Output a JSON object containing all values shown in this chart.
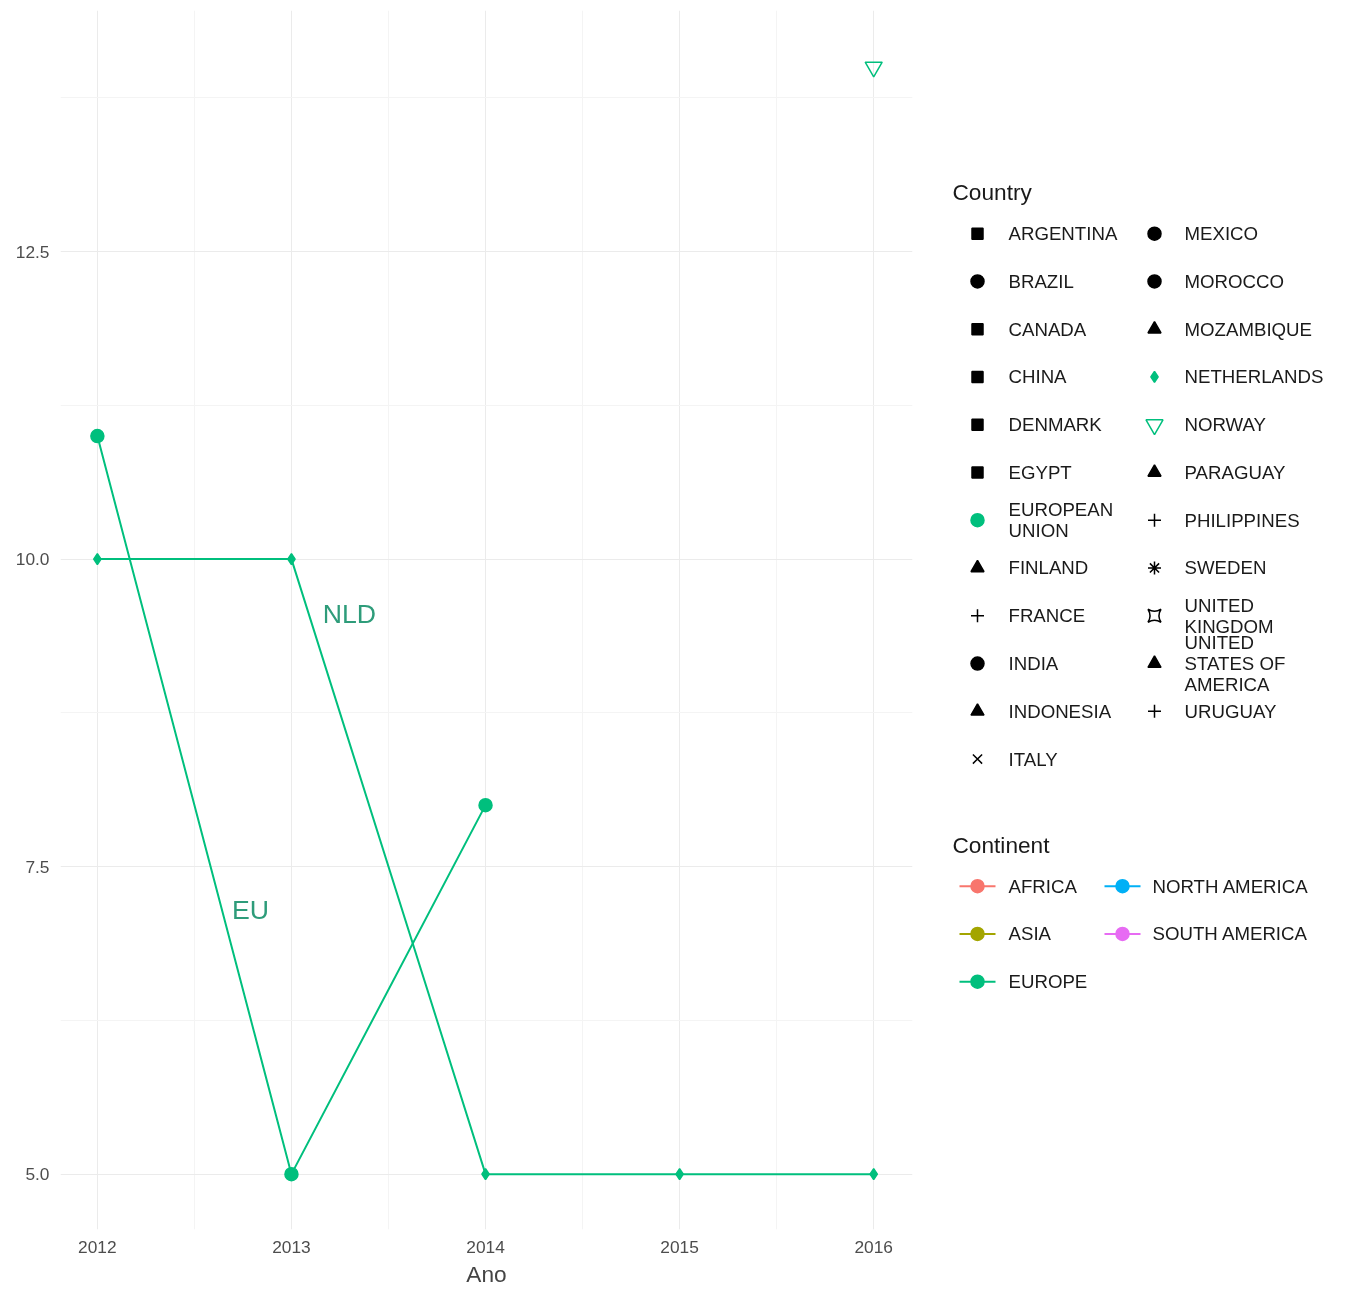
{
  "chart_data": {
    "type": "line",
    "xlabel": "Ano",
    "legend_title": [
      "Country",
      "Continent"
    ],
    "legend": "right",
    "grid": true,
    "marker": "circle",
    "x": [
      2012,
      2013,
      2014,
      2015,
      2016
    ],
    "xlim": [
      2011.81,
      2016.2
    ],
    "ylim": [
      4.55,
      14.46
    ],
    "xticks": [
      2012,
      2013,
      2014,
      2015,
      2016
    ],
    "yticks": [
      {
        "value": 5,
        "label": "5.0"
      },
      7.5,
      {
        "value": 10,
        "label": "10.0"
      },
      12.5
    ],
    "annotations": [
      "NLD",
      "EU"
    ],
    "series": [
      {
        "name": "ARGENTINA",
        "type": "scatter",
        "marker": "square",
        "values": [
          null,
          null,
          null,
          null,
          null
        ]
      },
      {
        "name": "BRAZIL",
        "type": "scatter",
        "marker": "circle",
        "values": [
          null,
          null,
          null,
          null,
          null
        ]
      },
      {
        "name": "CANADA",
        "type": "scatter",
        "marker": "square",
        "values": [
          null,
          null,
          null,
          null,
          null
        ]
      },
      {
        "name": "CHINA",
        "type": "scatter",
        "marker": "square",
        "values": [
          null,
          null,
          null,
          null,
          null
        ]
      },
      {
        "name": "DENMARK",
        "type": "scatter",
        "marker": "square",
        "values": [
          null,
          null,
          null,
          null,
          null
        ]
      },
      {
        "name": "EGYPT",
        "type": "scatter",
        "marker": "square",
        "values": [
          null,
          null,
          null,
          null,
          null
        ]
      },
      {
        "name": "EUROPEAN UNION",
        "marker": "circle",
        "color": "#00bf7d",
        "values": [
          11,
          5,
          8,
          null,
          null
        ]
      },
      {
        "name": "FINLAND",
        "type": "scatter",
        "marker": "triangle",
        "values": [
          null,
          null,
          null,
          null,
          null
        ]
      },
      {
        "name": "FRANCE",
        "type": "scatter",
        "marker": "cross",
        "values": [
          null,
          null,
          null,
          null,
          null
        ]
      },
      {
        "name": "INDIA",
        "type": "scatter",
        "marker": "circle",
        "values": [
          null,
          null,
          null,
          null,
          null
        ]
      },
      {
        "name": "INDONESIA",
        "type": "scatter",
        "marker": "triangle",
        "values": [
          null,
          null,
          null,
          null,
          null
        ]
      },
      {
        "name": "ITALY",
        "type": "scatter",
        "marker": "x",
        "values": [
          null,
          null,
          null,
          null,
          null
        ]
      },
      {
        "name": "MEXICO",
        "type": "scatter",
        "marker": "circle",
        "values": [
          null,
          null,
          null,
          null,
          null
        ]
      },
      {
        "name": "MOROCCO",
        "type": "scatter",
        "marker": "circle",
        "values": [
          null,
          null,
          null,
          null,
          null
        ]
      },
      {
        "name": "MOZAMBIQUE",
        "type": "scatter",
        "marker": "triangle",
        "values": [
          null,
          null,
          null,
          null,
          null
        ]
      },
      {
        "name": "NETHERLANDS",
        "marker": "diamond",
        "color": "#00bf7d",
        "values": [
          10,
          10,
          5,
          5,
          5
        ]
      },
      {
        "name": "NORWAY",
        "type": "scatter",
        "marker": "triangle",
        "color": "#00bf7d",
        "values": [
          null,
          null,
          null,
          null,
          14.0
        ]
      },
      {
        "name": "PARAGUAY",
        "type": "scatter",
        "marker": "triangle",
        "values": [
          null,
          null,
          null,
          null,
          null
        ]
      },
      {
        "name": "PHILIPPINES",
        "type": "scatter",
        "marker": "cross",
        "values": [
          null,
          null,
          null,
          null,
          null
        ]
      },
      {
        "name": "SWEDEN",
        "type": "scatter",
        "marker": "asterisk",
        "values": [
          null,
          null,
          null,
          null,
          null
        ]
      },
      {
        "name": "UNITED KINGDOM",
        "type": "scatter",
        "marker": "star",
        "values": [
          null,
          null,
          null,
          null,
          null
        ]
      },
      {
        "name": "UNITED STATES OF AMERICA",
        "type": "scatter",
        "marker": "triangle",
        "values": [
          null,
          null,
          null,
          null,
          null
        ]
      },
      {
        "name": "URUGUAY",
        "type": "scatter",
        "marker": "cross",
        "values": [
          null,
          null,
          null,
          null,
          null
        ]
      },
      {
        "name": "AFRICA",
        "color": "#f8766d",
        "values": [
          null,
          null,
          null,
          null,
          null
        ]
      },
      {
        "name": "ASIA",
        "color": "#a3a500",
        "values": [
          null,
          null,
          null,
          null,
          null
        ]
      },
      {
        "name": "EUROPE",
        "color": "#00bf7d",
        "values": [
          null,
          null,
          null,
          null,
          null
        ]
      },
      {
        "name": "NORTH AMERICA",
        "color": "#00b0f6",
        "values": [
          null,
          null,
          null,
          null,
          null
        ]
      },
      {
        "name": "SOUTH AMERICA",
        "color": "#e76bf3",
        "values": [
          null,
          null,
          null,
          null,
          null
        ]
      }
    ]
  }
}
